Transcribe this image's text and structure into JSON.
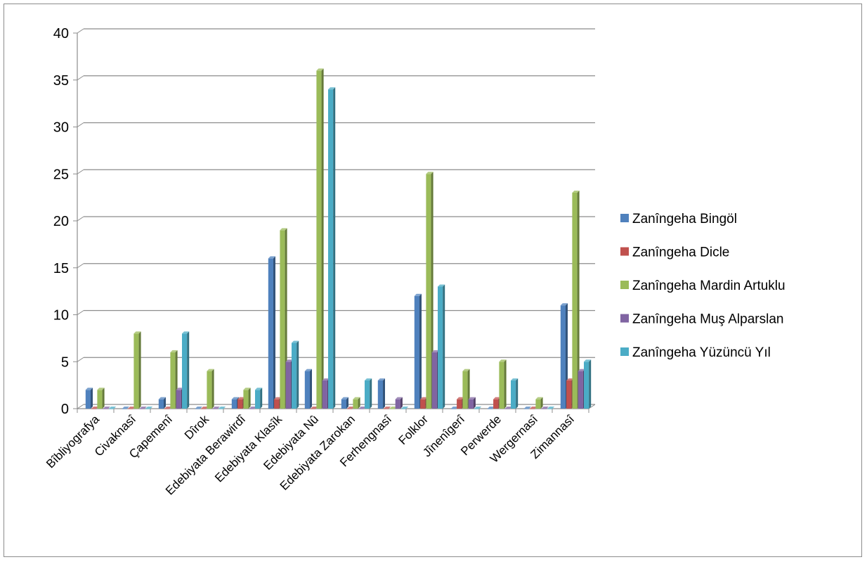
{
  "chart_data": {
    "type": "bar",
    "title": "",
    "xlabel": "",
    "ylabel": "",
    "ylim": [
      0,
      40
    ],
    "yticks": [
      0,
      5,
      10,
      15,
      20,
      25,
      30,
      35,
      40
    ],
    "grid": true,
    "legend_position": "right",
    "categories": [
      "Bîbliyografya",
      "Civaknasî",
      "Çapemenî",
      "Dîrok",
      "Edebiyata Berawirdî",
      "Edebiyata Klasîk",
      "Edebiyata Nû",
      "Edebiyata Zarokan",
      "Ferhengnasî",
      "Folklor",
      "Jînenîgerî",
      "Perwerde",
      "Wergernasî",
      "Zimannasî"
    ],
    "series": [
      {
        "name": "Zanîngeha Bingöl",
        "color": "#4f81bd",
        "values": [
          2,
          0,
          1,
          0,
          1,
          16,
          4,
          1,
          3,
          12,
          0,
          0,
          0,
          11
        ]
      },
      {
        "name": "Zanîngeha Dicle",
        "color": "#c0504d",
        "values": [
          0,
          0,
          0,
          0,
          1,
          1,
          0,
          0,
          0,
          1,
          1,
          1,
          0,
          3
        ]
      },
      {
        "name": "Zanîngeha Mardin  Artuklu",
        "color": "#9bbb59",
        "values": [
          2,
          8,
          6,
          4,
          2,
          19,
          36,
          1,
          0,
          25,
          4,
          5,
          1,
          23
        ]
      },
      {
        "name": "Zanîngeha Muş  Alparslan",
        "color": "#8064a2",
        "values": [
          0,
          0,
          2,
          0,
          0,
          5,
          3,
          0,
          1,
          6,
          1,
          0,
          0,
          4
        ]
      },
      {
        "name": "Zanîngeha Yüzüncü  Yıl",
        "color": "#4bacc6",
        "values": [
          0,
          0,
          8,
          0,
          2,
          7,
          34,
          3,
          0,
          13,
          0,
          3,
          0,
          5
        ]
      }
    ]
  }
}
